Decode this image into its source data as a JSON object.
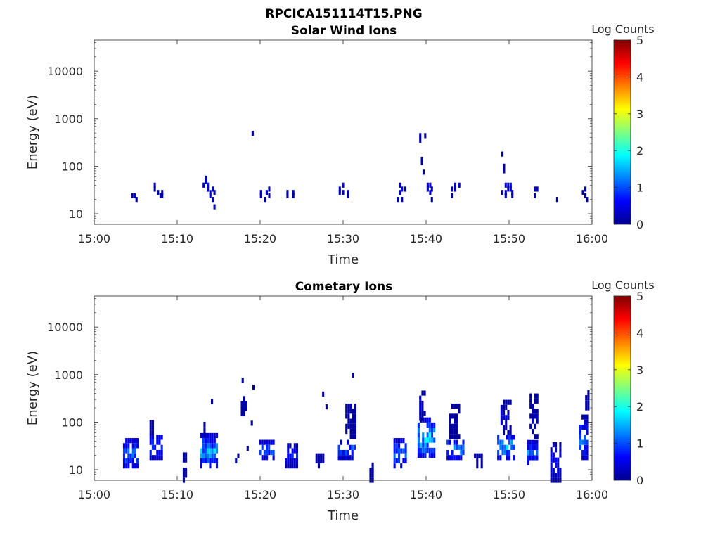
{
  "figure_title": "RPCICA151114T15.PNG",
  "chart_data": [
    {
      "type": "heatmap",
      "title": "Solar Wind Ions",
      "xlabel": "Time",
      "ylabel": "Energy (eV)",
      "x_ticks": [
        "15:00",
        "15:10",
        "15:20",
        "15:30",
        "15:40",
        "15:50",
        "16:00"
      ],
      "y_ticks": [
        "10",
        "100",
        "1000",
        "10000"
      ],
      "y_scale": "log",
      "xlim_minutes": [
        0,
        60
      ],
      "ylim_eV": [
        6,
        45000
      ],
      "colorbar": {
        "label": "Log Counts",
        "ticks": [
          "0",
          "1",
          "2",
          "3",
          "4",
          "5"
        ],
        "range": [
          0,
          5
        ],
        "colormap": "jet"
      },
      "cells": [
        {
          "t": 4.6,
          "e": 24,
          "v": 0.3
        },
        {
          "t": 4.9,
          "e": 24,
          "v": 0.3
        },
        {
          "t": 5.1,
          "e": 20,
          "v": 0.2
        },
        {
          "t": 7.3,
          "e": 40,
          "v": 0.3
        },
        {
          "t": 7.3,
          "e": 33,
          "v": 0.2
        },
        {
          "t": 7.7,
          "e": 28,
          "v": 0.3
        },
        {
          "t": 8.0,
          "e": 24,
          "v": 0.3
        },
        {
          "t": 8.2,
          "e": 28,
          "v": 0.3
        },
        {
          "t": 8.2,
          "e": 24,
          "v": 0.2
        },
        {
          "t": 13.2,
          "e": 40,
          "v": 0.3
        },
        {
          "t": 13.5,
          "e": 48,
          "v": 0.4
        },
        {
          "t": 13.5,
          "e": 56,
          "v": 0.2
        },
        {
          "t": 13.7,
          "e": 40,
          "v": 0.5
        },
        {
          "t": 13.7,
          "e": 33,
          "v": 0.3
        },
        {
          "t": 14.0,
          "e": 28,
          "v": 0.3
        },
        {
          "t": 14.0,
          "e": 24,
          "v": 0.3
        },
        {
          "t": 14.3,
          "e": 33,
          "v": 0.4
        },
        {
          "t": 14.3,
          "e": 20,
          "v": 0.3
        },
        {
          "t": 14.5,
          "e": 14,
          "v": 0.3
        },
        {
          "t": 14.5,
          "e": 28,
          "v": 0.3
        },
        {
          "t": 19.1,
          "e": 490,
          "v": 0.2
        },
        {
          "t": 20.1,
          "e": 28,
          "v": 0.3
        },
        {
          "t": 20.1,
          "e": 24,
          "v": 0.3
        },
        {
          "t": 20.6,
          "e": 20,
          "v": 0.2
        },
        {
          "t": 20.8,
          "e": 28,
          "v": 0.3
        },
        {
          "t": 21.1,
          "e": 33,
          "v": 0.3
        },
        {
          "t": 21.1,
          "e": 24,
          "v": 0.2
        },
        {
          "t": 23.3,
          "e": 28,
          "v": 0.3
        },
        {
          "t": 23.3,
          "e": 24,
          "v": 0.3
        },
        {
          "t": 24.0,
          "e": 28,
          "v": 0.3
        },
        {
          "t": 24.0,
          "e": 24,
          "v": 0.2
        },
        {
          "t": 29.6,
          "e": 33,
          "v": 0.4
        },
        {
          "t": 29.6,
          "e": 28,
          "v": 0.3
        },
        {
          "t": 30.0,
          "e": 40,
          "v": 0.3
        },
        {
          "t": 30.0,
          "e": 28,
          "v": 0.3
        },
        {
          "t": 30.6,
          "e": 28,
          "v": 0.2
        },
        {
          "t": 30.6,
          "e": 24,
          "v": 0.2
        },
        {
          "t": 36.6,
          "e": 20,
          "v": 0.3
        },
        {
          "t": 36.9,
          "e": 40,
          "v": 0.3
        },
        {
          "t": 36.9,
          "e": 28,
          "v": 0.3
        },
        {
          "t": 37.1,
          "e": 33,
          "v": 0.4
        },
        {
          "t": 37.1,
          "e": 20,
          "v": 0.2
        },
        {
          "t": 37.5,
          "e": 33,
          "v": 0.3
        },
        {
          "t": 39.3,
          "e": 440,
          "v": 0.2
        },
        {
          "t": 39.3,
          "e": 350,
          "v": 0.2
        },
        {
          "t": 39.5,
          "e": 140,
          "v": 0.3
        },
        {
          "t": 39.5,
          "e": 120,
          "v": 0.2
        },
        {
          "t": 39.7,
          "e": 75,
          "v": 0.2
        },
        {
          "t": 39.9,
          "e": 440,
          "v": 0.2
        },
        {
          "t": 40.2,
          "e": 40,
          "v": 0.3
        },
        {
          "t": 40.2,
          "e": 33,
          "v": 0.4
        },
        {
          "t": 40.5,
          "e": 28,
          "v": 0.3
        },
        {
          "t": 40.5,
          "e": 40,
          "v": 0.6
        },
        {
          "t": 40.7,
          "e": 33,
          "v": 0.3
        },
        {
          "t": 40.7,
          "e": 20,
          "v": 0.2
        },
        {
          "t": 43.1,
          "e": 33,
          "v": 0.3
        },
        {
          "t": 43.1,
          "e": 24,
          "v": 0.2
        },
        {
          "t": 43.5,
          "e": 40,
          "v": 0.3
        },
        {
          "t": 43.5,
          "e": 33,
          "v": 0.3
        },
        {
          "t": 44.0,
          "e": 40,
          "v": 0.3
        },
        {
          "t": 49.2,
          "e": 180,
          "v": 0.2
        },
        {
          "t": 49.2,
          "e": 28,
          "v": 0.3
        },
        {
          "t": 49.4,
          "e": 100,
          "v": 0.2
        },
        {
          "t": 49.4,
          "e": 80,
          "v": 0.2
        },
        {
          "t": 49.6,
          "e": 40,
          "v": 0.4
        },
        {
          "t": 49.6,
          "e": 28,
          "v": 0.3
        },
        {
          "t": 49.6,
          "e": 24,
          "v": 0.3
        },
        {
          "t": 49.9,
          "e": 33,
          "v": 0.3
        },
        {
          "t": 49.9,
          "e": 40,
          "v": 0.3
        },
        {
          "t": 50.2,
          "e": 40,
          "v": 0.7
        },
        {
          "t": 50.2,
          "e": 33,
          "v": 0.5
        },
        {
          "t": 50.4,
          "e": 28,
          "v": 0.3
        },
        {
          "t": 50.4,
          "e": 24,
          "v": 0.3
        },
        {
          "t": 53.1,
          "e": 33,
          "v": 0.3
        },
        {
          "t": 53.1,
          "e": 24,
          "v": 0.2
        },
        {
          "t": 53.4,
          "e": 33,
          "v": 0.3
        },
        {
          "t": 55.8,
          "e": 20,
          "v": 0.2
        },
        {
          "t": 58.9,
          "e": 28,
          "v": 0.3
        },
        {
          "t": 59.2,
          "e": 33,
          "v": 0.3
        },
        {
          "t": 59.2,
          "e": 24,
          "v": 0.2
        },
        {
          "t": 59.4,
          "e": 20,
          "v": 0.2
        }
      ]
    },
    {
      "type": "heatmap",
      "title": "Cometary Ions",
      "xlabel": "Time",
      "ylabel": "Energy (eV)",
      "x_ticks": [
        "15:00",
        "15:10",
        "15:20",
        "15:30",
        "15:40",
        "15:50",
        "16:00"
      ],
      "y_ticks": [
        "10",
        "100",
        "1000",
        "10000"
      ],
      "y_scale": "log",
      "xlim_minutes": [
        0,
        60
      ],
      "ylim_eV": [
        6,
        45000
      ],
      "colorbar": {
        "label": "Log Counts",
        "ticks": [
          "0",
          "1",
          "2",
          "3",
          "4",
          "5"
        ],
        "range": [
          0,
          5
        ],
        "colormap": "jet"
      },
      "bursts": [
        {
          "t0": 3.6,
          "t1": 5.3,
          "e0": 12,
          "e1": 45,
          "peak": 1.4
        },
        {
          "t0": 6.8,
          "t1": 8.4,
          "e0": 18,
          "e1": 60,
          "peak": 1.1
        },
        {
          "t0": 6.8,
          "t1": 7.1,
          "e0": 60,
          "e1": 120,
          "peak": 0.2
        },
        {
          "t0": 10.8,
          "t1": 11.3,
          "e0": 6,
          "e1": 22,
          "peak": 0.3
        },
        {
          "t0": 12.9,
          "t1": 14.8,
          "e0": 12,
          "e1": 55,
          "peak": 1.7
        },
        {
          "t0": 13.3,
          "t1": 13.8,
          "e0": 55,
          "e1": 110,
          "peak": 0.4
        },
        {
          "t0": 17.1,
          "t1": 17.5,
          "e0": 12,
          "e1": 20,
          "peak": 0.2
        },
        {
          "t0": 17.8,
          "t1": 18.6,
          "e0": 150,
          "e1": 350,
          "peak": 0.3
        },
        {
          "t0": 20.0,
          "t1": 21.7,
          "e0": 18,
          "e1": 40,
          "peak": 1.3
        },
        {
          "t0": 23.1,
          "t1": 24.6,
          "e0": 12,
          "e1": 35,
          "peak": 0.8
        },
        {
          "t0": 26.8,
          "t1": 27.8,
          "e0": 12,
          "e1": 22,
          "peak": 0.3
        },
        {
          "t0": 29.5,
          "t1": 31.6,
          "e0": 18,
          "e1": 40,
          "peak": 1.4
        },
        {
          "t0": 30.4,
          "t1": 31.6,
          "e0": 50,
          "e1": 230,
          "peak": 0.2
        },
        {
          "t0": 33.3,
          "t1": 33.6,
          "e0": 6,
          "e1": 18,
          "peak": 0.2
        },
        {
          "t0": 36.2,
          "t1": 37.8,
          "e0": 12,
          "e1": 45,
          "peak": 1.5
        },
        {
          "t0": 39.1,
          "t1": 41.1,
          "e0": 20,
          "e1": 120,
          "peak": 2.0
        },
        {
          "t0": 39.3,
          "t1": 40.0,
          "e0": 120,
          "e1": 500,
          "peak": 0.4
        },
        {
          "t0": 42.6,
          "t1": 44.5,
          "e0": 18,
          "e1": 45,
          "peak": 1.7
        },
        {
          "t0": 42.9,
          "t1": 44.1,
          "e0": 50,
          "e1": 260,
          "peak": 0.3
        },
        {
          "t0": 45.9,
          "t1": 46.8,
          "e0": 12,
          "e1": 25,
          "peak": 0.3
        },
        {
          "t0": 48.7,
          "t1": 50.6,
          "e0": 18,
          "e1": 60,
          "peak": 1.8
        },
        {
          "t0": 49.1,
          "t1": 50.2,
          "e0": 60,
          "e1": 280,
          "peak": 0.4
        },
        {
          "t0": 52.3,
          "t1": 53.6,
          "e0": 14,
          "e1": 40,
          "peak": 1.4
        },
        {
          "t0": 52.6,
          "t1": 53.6,
          "e0": 50,
          "e1": 360,
          "peak": 0.4
        },
        {
          "t0": 55.1,
          "t1": 56.2,
          "e0": 6,
          "e1": 40,
          "peak": 0.7
        },
        {
          "t0": 58.6,
          "t1": 59.6,
          "e0": 18,
          "e1": 130,
          "peak": 1.3
        },
        {
          "t0": 59.3,
          "t1": 59.6,
          "e0": 200,
          "e1": 430,
          "peak": 0.2
        }
      ],
      "cells": [
        {
          "t": 17.9,
          "e": 760,
          "v": 0.2
        },
        {
          "t": 19.2,
          "e": 540,
          "v": 0.2
        },
        {
          "t": 19.0,
          "e": 95,
          "v": 0.2
        },
        {
          "t": 14.2,
          "e": 270,
          "v": 0.2
        },
        {
          "t": 27.6,
          "e": 390,
          "v": 0.2
        },
        {
          "t": 28.0,
          "e": 210,
          "v": 0.2
        },
        {
          "t": 31.2,
          "e": 970,
          "v": 0.2
        },
        {
          "t": 18.5,
          "e": 28,
          "v": 0.2
        }
      ]
    }
  ]
}
